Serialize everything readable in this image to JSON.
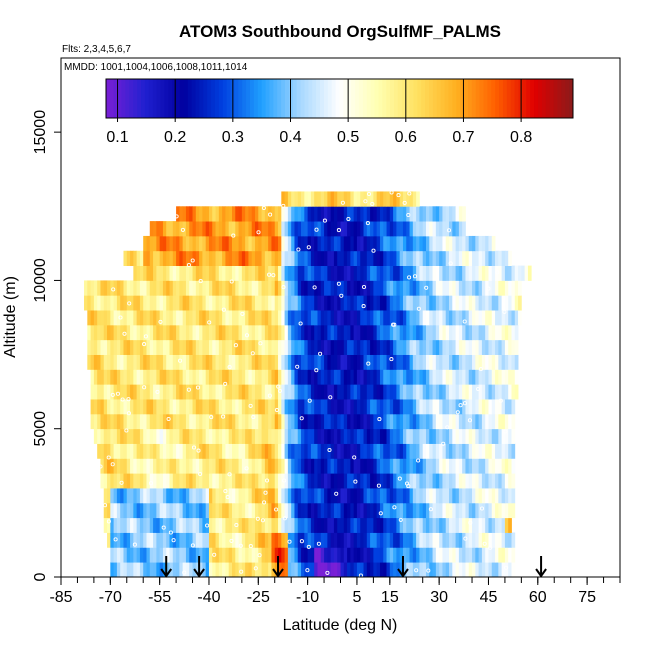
{
  "chart_data": {
    "type": "heatmap",
    "title": "ATOM3 Southbound OrgSulfMF_PALMS",
    "flights_note": "Flts: 2,3,4,5,6,7",
    "dates_note": "MMDD: 1001,1004,1006,1008,1011,1014",
    "xlabel": "Latitude (deg N)",
    "ylabel": "Altitude (m)",
    "xlim": [
      -85,
      85
    ],
    "ylim": [
      0,
      17500
    ],
    "x_ticks": [
      -85,
      -70,
      -55,
      -40,
      -25,
      -10,
      5,
      15,
      30,
      45,
      60,
      75
    ],
    "y_ticks": [
      0,
      5000,
      10000,
      15000
    ],
    "colorbar": {
      "range": [
        0.08,
        0.89
      ],
      "ticks": [
        0.1,
        0.2,
        0.3,
        0.4,
        0.5,
        0.6,
        0.7,
        0.8
      ],
      "colors": [
        "#7a1fd6",
        "#2020d0",
        "#0000a0",
        "#0040e0",
        "#20a0ff",
        "#a8d8ff",
        "#ffffff",
        "#ffffb0",
        "#ffe060",
        "#ffb020",
        "#ff6000",
        "#e00000",
        "#8b1a1a"
      ]
    },
    "profile_markers_lat": [
      -53,
      -43,
      -19,
      19,
      61
    ],
    "band_height_m": 500,
    "altitude_bands": [
      {
        "alt": 250,
        "lat_range": [
          -70,
          53
        ]
      },
      {
        "alt": 750,
        "lat_range": [
          -70,
          53
        ]
      },
      {
        "alt": 1250,
        "lat_range": [
          -71,
          53
        ]
      },
      {
        "alt": 1750,
        "lat_range": [
          -72,
          52
        ]
      },
      {
        "alt": 2250,
        "lat_range": [
          -72,
          53
        ]
      },
      {
        "alt": 2750,
        "lat_range": [
          -72,
          53
        ]
      },
      {
        "alt": 3250,
        "lat_range": [
          -73,
          53
        ]
      },
      {
        "alt": 3750,
        "lat_range": [
          -73,
          53
        ]
      },
      {
        "alt": 4250,
        "lat_range": [
          -74,
          53
        ]
      },
      {
        "alt": 4750,
        "lat_range": [
          -75,
          53
        ]
      },
      {
        "alt": 5250,
        "lat_range": [
          -76,
          53
        ]
      },
      {
        "alt": 5750,
        "lat_range": [
          -76,
          53
        ]
      },
      {
        "alt": 6250,
        "lat_range": [
          -76,
          54
        ]
      },
      {
        "alt": 6750,
        "lat_range": [
          -76,
          54
        ]
      },
      {
        "alt": 7250,
        "lat_range": [
          -77,
          54
        ]
      },
      {
        "alt": 7750,
        "lat_range": [
          -77,
          54
        ]
      },
      {
        "alt": 8250,
        "lat_range": [
          -77,
          54
        ]
      },
      {
        "alt": 8750,
        "lat_range": [
          -77,
          55
        ]
      },
      {
        "alt": 9250,
        "lat_range": [
          -78,
          55
        ]
      },
      {
        "alt": 9750,
        "lat_range": [
          -78,
          55
        ]
      },
      {
        "alt": 10250,
        "lat_range": [
          -63,
          58
        ]
      },
      {
        "alt": 10750,
        "lat_range": [
          -66,
          52
        ]
      },
      {
        "alt": 11250,
        "lat_range": [
          -60,
          47
        ]
      },
      {
        "alt": 11750,
        "lat_range": [
          -58,
          38
        ]
      },
      {
        "alt": 12250,
        "lat_range": [
          -50,
          38
        ]
      },
      {
        "alt": 12750,
        "lat_range": [
          -18,
          24
        ]
      }
    ],
    "latitude_profile": [
      {
        "lat": -78,
        "value": 0.6
      },
      {
        "lat": -70,
        "value": 0.62
      },
      {
        "lat": -62,
        "value": 0.58
      },
      {
        "lat": -55,
        "value": 0.55
      },
      {
        "lat": -48,
        "value": 0.58
      },
      {
        "lat": -40,
        "value": 0.6
      },
      {
        "lat": -30,
        "value": 0.57
      },
      {
        "lat": -24,
        "value": 0.62
      },
      {
        "lat": -20,
        "value": 0.66
      },
      {
        "lat": -16,
        "value": 0.4
      },
      {
        "lat": -12,
        "value": 0.28
      },
      {
        "lat": -6,
        "value": 0.24
      },
      {
        "lat": 0,
        "value": 0.22
      },
      {
        "lat": 6,
        "value": 0.23
      },
      {
        "lat": 12,
        "value": 0.28
      },
      {
        "lat": 18,
        "value": 0.33
      },
      {
        "lat": 24,
        "value": 0.4
      },
      {
        "lat": 30,
        "value": 0.44
      },
      {
        "lat": 38,
        "value": 0.45
      },
      {
        "lat": 46,
        "value": 0.47
      },
      {
        "lat": 52,
        "value": 0.48
      },
      {
        "lat": 58,
        "value": 0.52
      }
    ],
    "features": [
      {
        "lat_range": [
          -72,
          -20
        ],
        "alt_range": [
          5000,
          10500
        ],
        "value": 0.6
      },
      {
        "lat_range": [
          -60,
          -18
        ],
        "alt_range": [
          10500,
          12300
        ],
        "value": 0.7
      },
      {
        "lat_range": [
          -18,
          24
        ],
        "alt_range": [
          12300,
          13000
        ],
        "value": 0.62
      },
      {
        "lat_range": [
          -21,
          -16
        ],
        "alt_range": [
          0,
          1500
        ],
        "value": 0.74
      },
      {
        "lat_range": [
          -8,
          2
        ],
        "alt_range": [
          0,
          1200
        ],
        "value": 0.12
      },
      {
        "lat_range": [
          50,
          53
        ],
        "alt_range": [
          1500,
          2000
        ],
        "value": 0.68
      },
      {
        "lat_range": [
          -70,
          -40
        ],
        "alt_range": [
          0,
          3000
        ],
        "value": 0.4
      }
    ]
  }
}
